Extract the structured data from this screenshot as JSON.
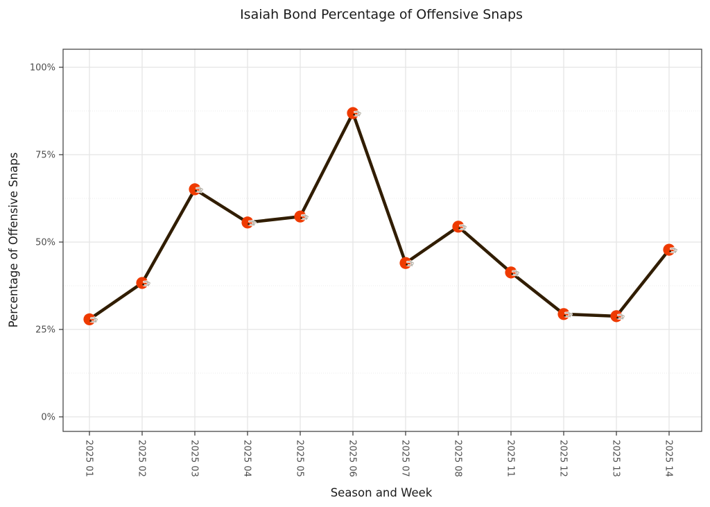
{
  "chart_data": {
    "type": "line",
    "title": "Isaiah Bond Percentage of Offensive Snaps",
    "xlabel": "Season and Week",
    "ylabel": "Percentage of Offensive Snaps",
    "categories": [
      "2025 01",
      "2025 02",
      "2025 03",
      "2025 04",
      "2025 05",
      "2025 06",
      "2025 07",
      "2025 08",
      "2025 11",
      "2025 12",
      "2025 13",
      "2025 14"
    ],
    "values": [
      27.9,
      38.3,
      65.1,
      55.6,
      57.3,
      86.9,
      44.0,
      54.4,
      41.3,
      29.4,
      28.8,
      47.8
    ],
    "y_ticks": [
      {
        "label": "0%",
        "value": 0
      },
      {
        "label": "25%",
        "value": 25
      },
      {
        "label": "50%",
        "value": 50
      },
      {
        "label": "75%",
        "value": 75
      },
      {
        "label": "100%",
        "value": 100
      }
    ],
    "minor_gridlines": [
      12.5,
      37.5,
      62.5,
      87.5
    ],
    "ylim": [
      0,
      100
    ],
    "grid": "major-and-minor-on",
    "legend": "none",
    "marker_icon": "browns-helmet-icon",
    "colors": {
      "line": "#311D00",
      "helmet_shell": "#EE3A00",
      "facemask": "#cdc8bf",
      "facemask_highlight": "#ffffff",
      "ear_hole": "#311D00",
      "gridline_major": "#e4e4e4",
      "gridline_minor": "#ebebeb",
      "panel_border": "#474747",
      "tick_label": "#4d4d4d",
      "text": "#1a1a1a",
      "background": "#ffffff"
    }
  }
}
